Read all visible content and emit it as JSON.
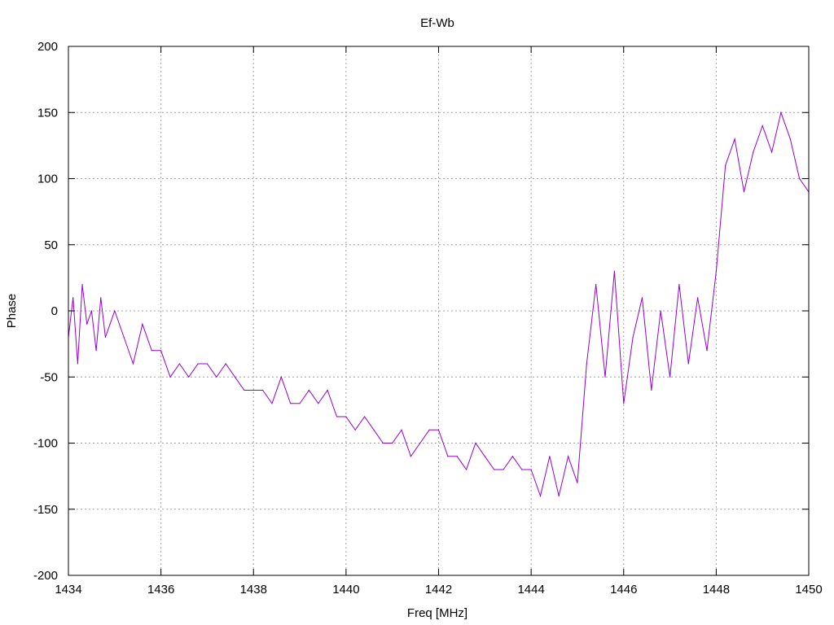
{
  "chart_data": {
    "type": "line",
    "title": "Ef-Wb",
    "xlabel": "Freq [MHz]",
    "ylabel": "Phase",
    "xlim": [
      1434,
      1450
    ],
    "ylim": [
      -200,
      200
    ],
    "xticks": [
      1434,
      1436,
      1438,
      1440,
      1442,
      1444,
      1446,
      1448,
      1450
    ],
    "yticks": [
      -200,
      -150,
      -100,
      -50,
      0,
      50,
      100,
      150,
      200
    ],
    "grid": true,
    "legend": "none",
    "series": [
      {
        "color": "#9400d3",
        "x": [
          1434.0,
          1434.1,
          1434.2,
          1434.3,
          1434.4,
          1434.5,
          1434.6,
          1434.7,
          1434.8,
          1434.9,
          1435.0,
          1435.2,
          1435.4,
          1435.6,
          1435.8,
          1436.0,
          1436.2,
          1436.4,
          1436.6,
          1436.8,
          1437.0,
          1437.2,
          1437.4,
          1437.6,
          1437.8,
          1438.0,
          1438.2,
          1438.4,
          1438.6,
          1438.8,
          1439.0,
          1439.2,
          1439.4,
          1439.6,
          1439.8,
          1440.0,
          1440.2,
          1440.4,
          1440.6,
          1440.8,
          1441.0,
          1441.2,
          1441.4,
          1441.6,
          1441.8,
          1442.0,
          1442.2,
          1442.4,
          1442.6,
          1442.8,
          1443.0,
          1443.2,
          1443.4,
          1443.6,
          1443.8,
          1444.0,
          1444.2,
          1444.4,
          1444.6,
          1444.8,
          1445.0,
          1445.2,
          1445.4,
          1445.6,
          1445.8,
          1446.0,
          1446.2,
          1446.4,
          1446.6,
          1446.8,
          1447.0,
          1447.2,
          1447.4,
          1447.6,
          1447.8,
          1448.0,
          1448.2,
          1448.4,
          1448.6,
          1448.8,
          1449.0,
          1449.2,
          1449.4,
          1449.6,
          1449.8,
          1450.0
        ],
        "y": [
          -20,
          10,
          -40,
          20,
          -10,
          0,
          -30,
          10,
          -20,
          -10,
          0,
          -20,
          -40,
          -10,
          -30,
          -30,
          -50,
          -40,
          -50,
          -40,
          -40,
          -50,
          -40,
          -50,
          -60,
          -60,
          -60,
          -70,
          -50,
          -70,
          -70,
          -60,
          -70,
          -60,
          -80,
          -80,
          -90,
          -80,
          -90,
          -100,
          -100,
          -90,
          -110,
          -100,
          -90,
          -90,
          -110,
          -110,
          -120,
          -100,
          -110,
          -120,
          -120,
          -110,
          -120,
          -120,
          -140,
          -110,
          -140,
          -110,
          -130,
          -40,
          20,
          -50,
          30,
          -70,
          -20,
          10,
          -60,
          0,
          -50,
          20,
          -40,
          10,
          -30,
          30,
          110,
          130,
          90,
          120,
          140,
          120,
          150,
          130,
          100,
          90
        ]
      }
    ]
  }
}
